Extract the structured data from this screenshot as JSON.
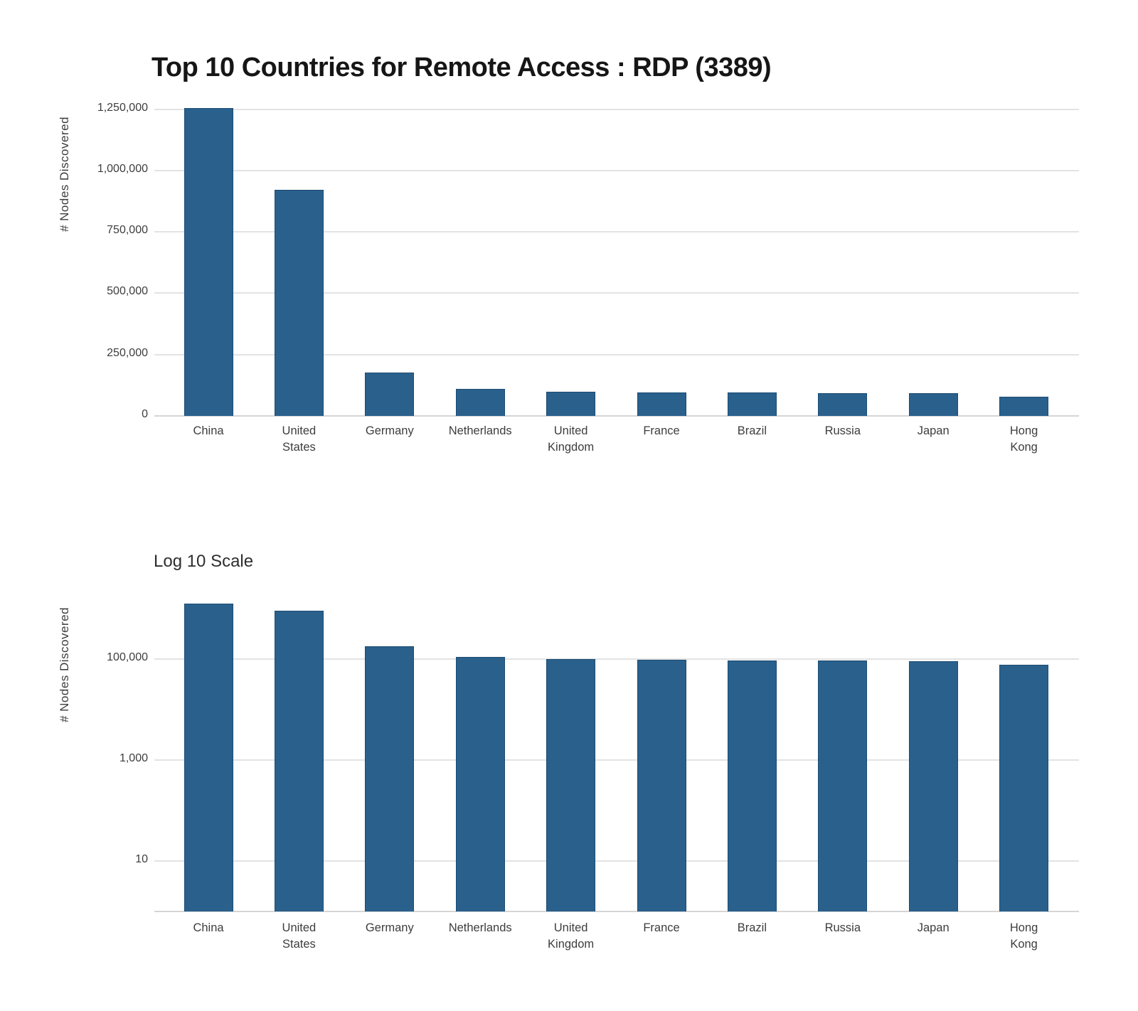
{
  "page": {
    "background": "#ffffff",
    "accent_color": "#2A608C"
  },
  "chart_data": [
    {
      "type": "bar",
      "title": "Top 10 Countries for Remote Access : RDP (3389)",
      "ylabel": "# Nodes Discovered",
      "xlabel": "",
      "scale": "linear",
      "categories": [
        "China",
        "United States",
        "Germany",
        "Netherlands",
        "United Kingdom",
        "France",
        "Brazil",
        "Russia",
        "Japan",
        "Hong Kong"
      ],
      "values": [
        1254000,
        920000,
        177000,
        111000,
        99000,
        96500,
        94500,
        93000,
        91500,
        77000
      ],
      "yticks": [
        0,
        250000,
        500000,
        750000,
        1000000,
        1250000
      ],
      "ytick_labels": [
        "0",
        "250,000",
        "500,000",
        "750,000",
        "1,000,000",
        "1,250,000"
      ],
      "ylim": [
        0,
        1290000
      ],
      "grid": true,
      "legend": false,
      "bar_color": "#2A608C",
      "bar_edge_color": "#1C4C73"
    },
    {
      "type": "bar",
      "title": "Log 10 Scale",
      "ylabel": "# Nodes Discovered",
      "xlabel": "",
      "scale": "log10",
      "categories": [
        "China",
        "United States",
        "Germany",
        "Netherlands",
        "United Kingdom",
        "France",
        "Brazil",
        "Russia",
        "Japan",
        "Hong Kong"
      ],
      "values": [
        1254000,
        920000,
        177000,
        111000,
        99000,
        96500,
        94500,
        93000,
        91500,
        77000
      ],
      "yticks": [
        10,
        1000,
        100000
      ],
      "ytick_labels": [
        "10",
        "1,000",
        "100,000"
      ],
      "ylim": [
        1,
        3100000
      ],
      "grid": true,
      "legend": false,
      "bar_color": "#2A608C",
      "bar_edge_color": "#1C4C73"
    }
  ]
}
